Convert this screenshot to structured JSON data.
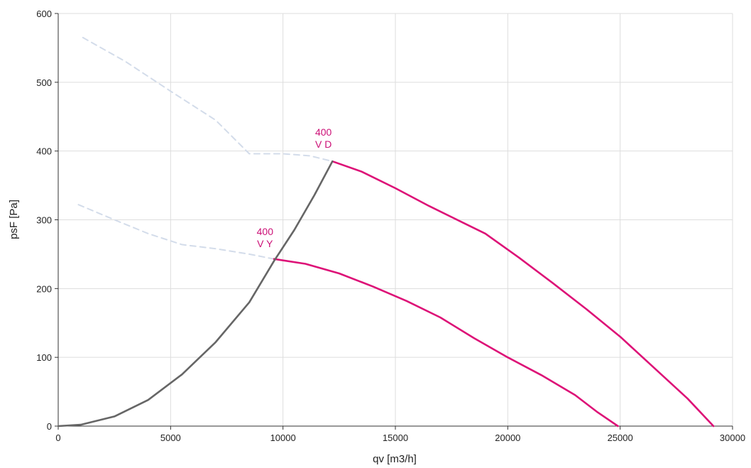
{
  "chart_data": {
    "type": "line",
    "title": "",
    "xlabel": "qv [m3/h]",
    "ylabel": "psF [Pa]",
    "xlim": [
      0,
      30000
    ],
    "ylim": [
      0,
      600
    ],
    "x_ticks": [
      0,
      5000,
      10000,
      15000,
      20000,
      25000,
      30000
    ],
    "y_ticks": [
      0,
      100,
      200,
      300,
      400,
      500,
      600
    ],
    "x_tick_labels": [
      "0",
      "5000",
      "10000",
      "15000",
      "20000",
      "25000",
      "30000"
    ],
    "y_tick_labels": [
      "0",
      "100",
      "200",
      "300",
      "400",
      "500",
      "600"
    ],
    "grid": true,
    "legend": "none",
    "colors": {
      "fan_curve": "#dd1177",
      "unstable_region": "#d3dcea",
      "system_curve": "#666666",
      "grid": "#dddddd",
      "axis": "#333333",
      "label": "#cc1177"
    },
    "series": [
      {
        "style": "dashed",
        "color_key": "unstable_region",
        "points": [
          [
            1100,
            565
          ],
          [
            3000,
            530
          ],
          [
            5000,
            487
          ],
          [
            7000,
            445
          ],
          [
            8500,
            396
          ],
          [
            10000,
            396
          ],
          [
            11200,
            393
          ],
          [
            12200,
            385
          ]
        ]
      },
      {
        "style": "solid",
        "color_key": "fan_curve",
        "points": [
          [
            12200,
            385
          ],
          [
            13500,
            370
          ],
          [
            15000,
            346
          ],
          [
            16500,
            320
          ],
          [
            18000,
            296
          ],
          [
            19000,
            280
          ],
          [
            20500,
            245
          ],
          [
            22000,
            208
          ],
          [
            23500,
            170
          ],
          [
            25000,
            130
          ],
          [
            26500,
            85
          ],
          [
            28000,
            40
          ],
          [
            29150,
            0
          ]
        ]
      },
      {
        "style": "dashed",
        "color_key": "unstable_region",
        "points": [
          [
            900,
            322
          ],
          [
            2500,
            300
          ],
          [
            4000,
            280
          ],
          [
            5500,
            264
          ],
          [
            7000,
            258
          ],
          [
            8500,
            250
          ],
          [
            9600,
            243
          ]
        ]
      },
      {
        "style": "solid",
        "color_key": "fan_curve",
        "points": [
          [
            9600,
            243
          ],
          [
            11000,
            236
          ],
          [
            12500,
            222
          ],
          [
            14000,
            203
          ],
          [
            15500,
            182
          ],
          [
            17000,
            158
          ],
          [
            18500,
            128
          ],
          [
            20000,
            100
          ],
          [
            21500,
            74
          ],
          [
            23000,
            45
          ],
          [
            24000,
            20
          ],
          [
            24900,
            0
          ]
        ]
      },
      {
        "style": "solid",
        "color_key": "system_curve",
        "points": [
          [
            0,
            0
          ],
          [
            1000,
            2
          ],
          [
            2500,
            14
          ],
          [
            4000,
            38
          ],
          [
            5500,
            75
          ],
          [
            7000,
            122
          ],
          [
            8500,
            180
          ],
          [
            9600,
            240
          ],
          [
            10500,
            285
          ],
          [
            11400,
            336
          ],
          [
            12200,
            385
          ]
        ]
      }
    ],
    "annotations": [
      {
        "lines": [
          "400",
          "V D"
        ],
        "x": 11800,
        "y": 405,
        "color_key": "label"
      },
      {
        "lines": [
          "400",
          "V Y"
        ],
        "x": 9200,
        "y": 260,
        "color_key": "label"
      }
    ]
  }
}
